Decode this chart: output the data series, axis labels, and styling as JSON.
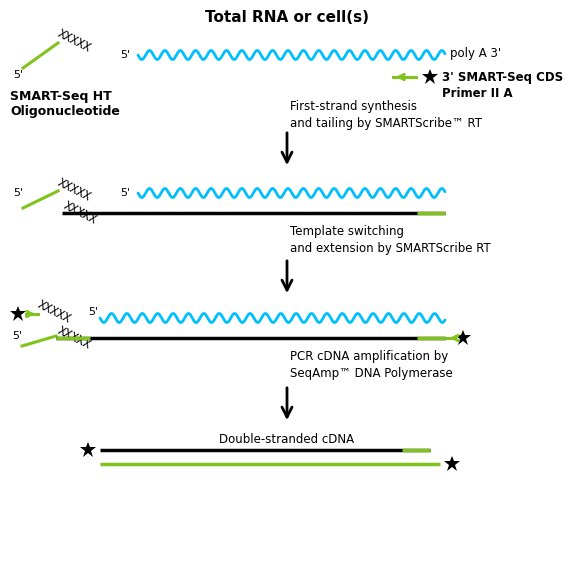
{
  "title": "Total RNA or cell(s)",
  "label_oligo": "SMART-Seq HT\nOligonucleotide",
  "label_polyA": "poly A 3'",
  "label_primer": "3' SMART-Seq CDS\nPrimer II A",
  "label_step1": "First-strand synthesis\nand tailing by SMARTScribe™ RT",
  "label_step2": "Template switching\nand extension by SMARTScribe RT",
  "label_step3": "PCR cDNA amplification by\nSeqAmp™ DNA Polymerase",
  "label_step4": "Double-stranded cDNA",
  "green_color": "#7FC31C",
  "cyan_color": "#00BFFF",
  "black_color": "#000000",
  "bg_color": "#FFFFFF",
  "fig_width": 5.75,
  "fig_height": 5.65,
  "dpi": 100
}
